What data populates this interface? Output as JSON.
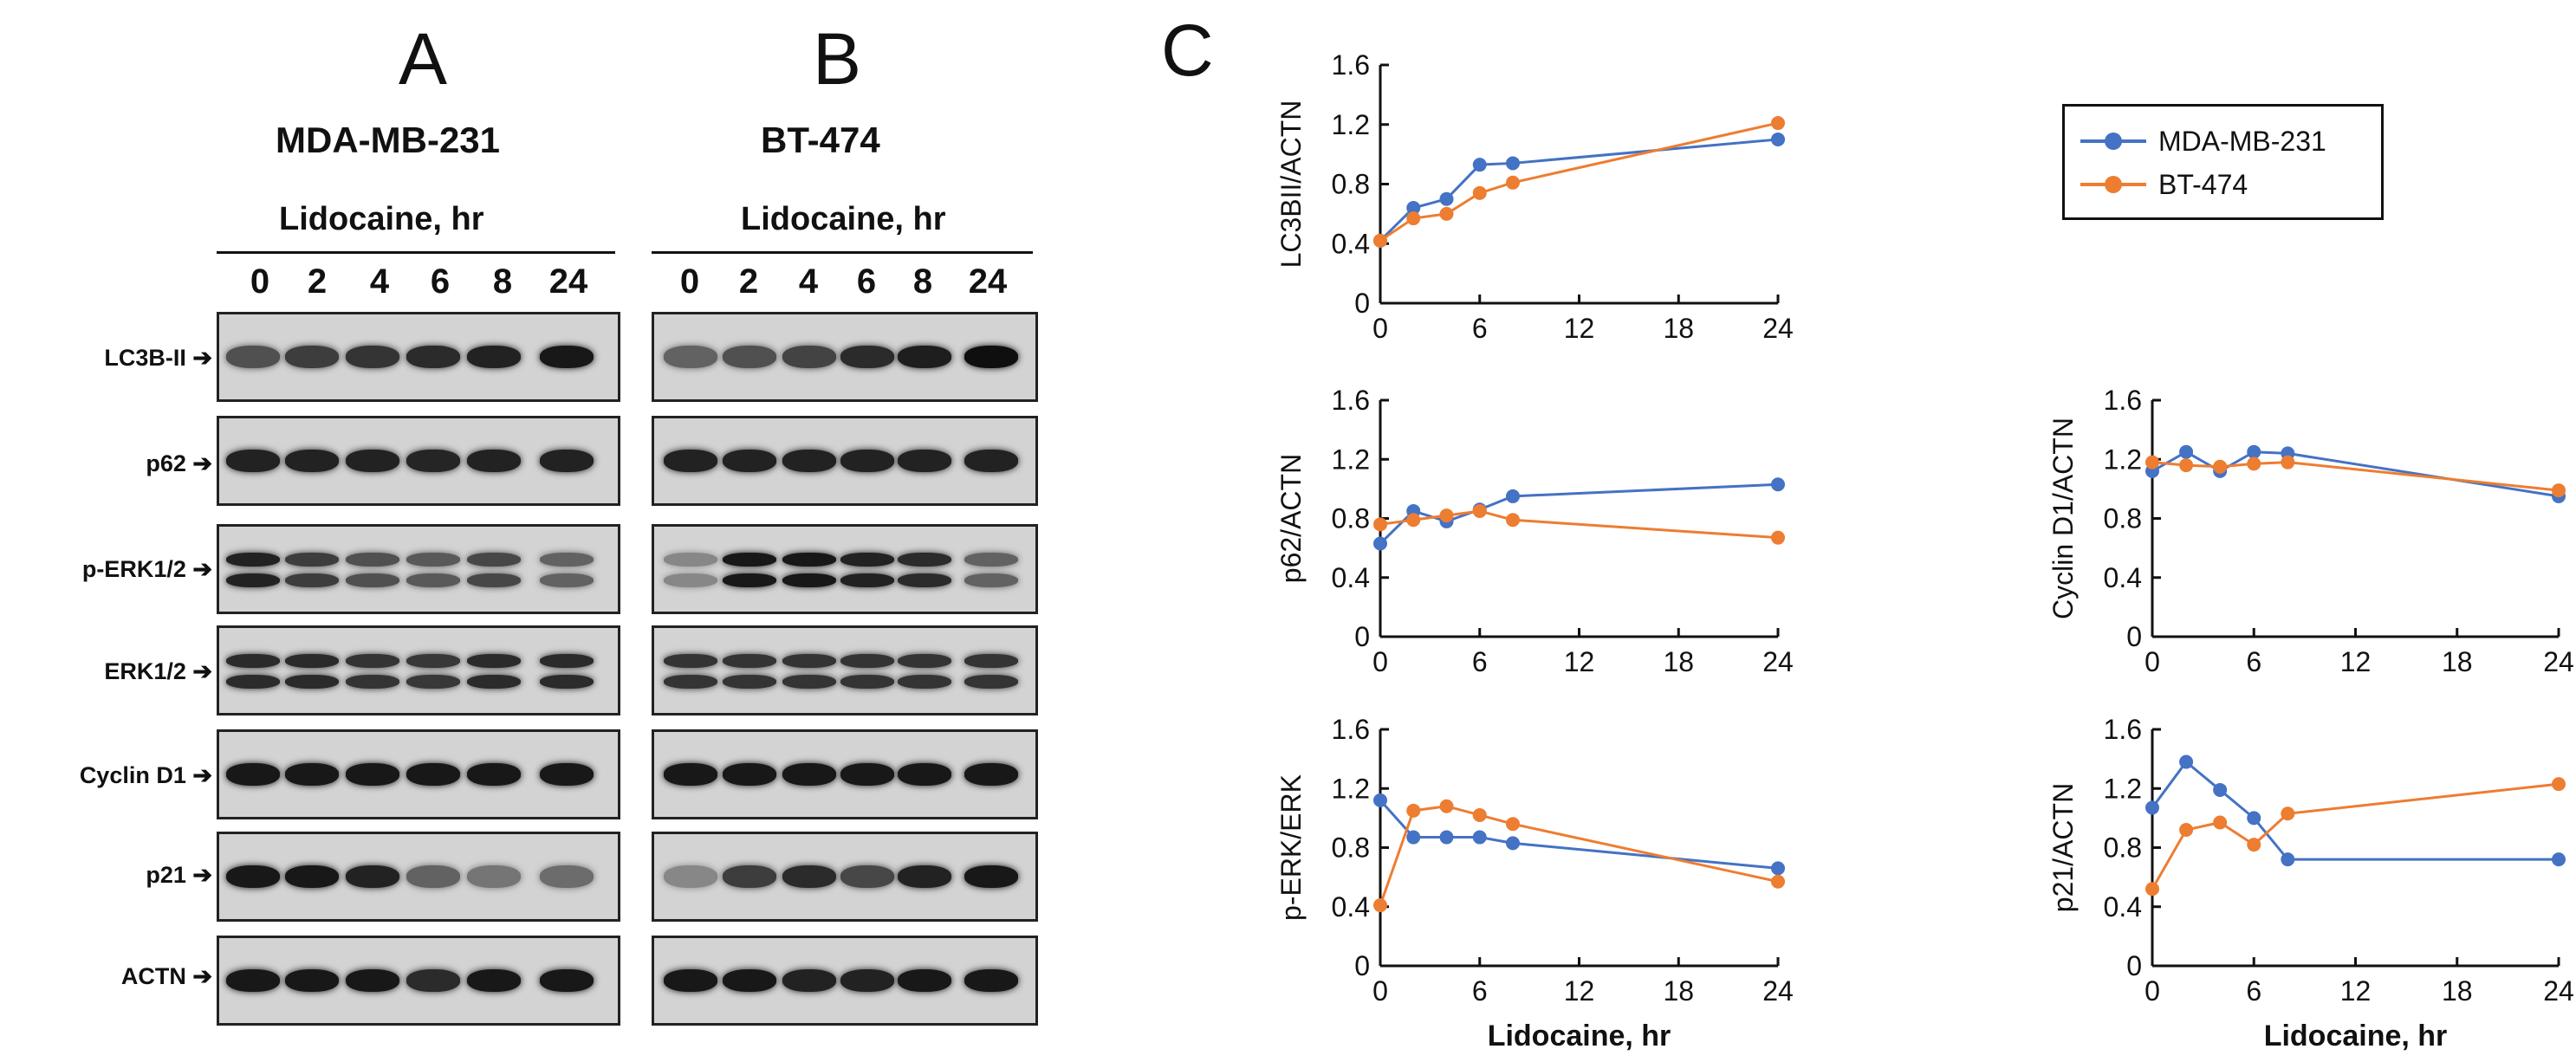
{
  "panel_letters": {
    "a": "A",
    "b": "B",
    "c": "C"
  },
  "cell_lines": [
    "MDA-MB-231",
    "BT-474"
  ],
  "blot_header": "Lidocaine, hr",
  "time_points": [
    "0",
    "2",
    "4",
    "6",
    "8",
    "24"
  ],
  "proteins": [
    "LC3B-II",
    "p62",
    "p-ERK1/2",
    "ERK1/2",
    "Cyclin D1",
    "p21",
    "ACTN"
  ],
  "arrow_symbol": "➔",
  "colors": {
    "mda": "#4472C4",
    "bt": "#ED7D31"
  },
  "legend": [
    "MDA-MB-231",
    "BT-474"
  ],
  "chart_data": [
    {
      "type": "line",
      "ylabel": "LC3BII/ACTN",
      "xlabel": "",
      "x": [
        0,
        2,
        4,
        6,
        8,
        24
      ],
      "xticks": [
        0,
        6,
        12,
        18,
        24
      ],
      "yticks": [
        0,
        0.4,
        0.8,
        1.2,
        1.6
      ],
      "xlim": [
        0,
        24
      ],
      "ylim": [
        0,
        1.6
      ],
      "series": [
        {
          "name": "MDA-MB-231",
          "values": [
            0.42,
            0.64,
            0.7,
            0.93,
            0.94,
            1.1
          ]
        },
        {
          "name": "BT-474",
          "values": [
            0.42,
            0.57,
            0.6,
            0.74,
            0.81,
            1.21
          ]
        }
      ]
    },
    {
      "type": "line",
      "ylabel": "p62/ACTN",
      "xlabel": "",
      "x": [
        0,
        2,
        4,
        6,
        8,
        24
      ],
      "xticks": [
        0,
        6,
        12,
        18,
        24
      ],
      "yticks": [
        0,
        0.4,
        0.8,
        1.2,
        1.6
      ],
      "xlim": [
        0,
        24
      ],
      "ylim": [
        0,
        1.6
      ],
      "series": [
        {
          "name": "MDA-MB-231",
          "values": [
            0.63,
            0.85,
            0.78,
            0.86,
            0.95,
            1.03
          ]
        },
        {
          "name": "BT-474",
          "values": [
            0.76,
            0.79,
            0.82,
            0.85,
            0.79,
            0.67
          ]
        }
      ]
    },
    {
      "type": "line",
      "ylabel": "Cyclin D1/ACTN",
      "xlabel": "",
      "x": [
        0,
        2,
        4,
        6,
        8,
        24
      ],
      "xticks": [
        0,
        6,
        12,
        18,
        24
      ],
      "yticks": [
        0,
        0.4,
        0.8,
        1.2,
        1.6
      ],
      "xlim": [
        0,
        24
      ],
      "ylim": [
        0,
        1.6
      ],
      "series": [
        {
          "name": "MDA-MB-231",
          "values": [
            1.12,
            1.25,
            1.12,
            1.25,
            1.24,
            0.95
          ]
        },
        {
          "name": "BT-474",
          "values": [
            1.18,
            1.16,
            1.15,
            1.17,
            1.18,
            0.99
          ]
        }
      ]
    },
    {
      "type": "line",
      "ylabel": "p-ERK/ERK",
      "xlabel": "Lidocaine, hr",
      "x": [
        0,
        2,
        4,
        6,
        8,
        24
      ],
      "xticks": [
        0,
        6,
        12,
        18,
        24
      ],
      "yticks": [
        0,
        0.4,
        0.8,
        1.2,
        1.6
      ],
      "xlim": [
        0,
        24
      ],
      "ylim": [
        0,
        1.6
      ],
      "series": [
        {
          "name": "MDA-MB-231",
          "values": [
            1.12,
            0.87,
            0.87,
            0.87,
            0.83,
            0.66
          ]
        },
        {
          "name": "BT-474",
          "values": [
            0.41,
            1.05,
            1.08,
            1.02,
            0.96,
            0.57
          ]
        }
      ]
    },
    {
      "type": "line",
      "ylabel": "p21/ACTN",
      "xlabel": "Lidocaine, hr",
      "x": [
        0,
        2,
        4,
        6,
        8,
        24
      ],
      "xticks": [
        0,
        6,
        12,
        18,
        24
      ],
      "yticks": [
        0,
        0.4,
        0.8,
        1.2,
        1.6
      ],
      "xlim": [
        0,
        24
      ],
      "ylim": [
        0,
        1.6
      ],
      "series": [
        {
          "name": "MDA-MB-231",
          "values": [
            1.07,
            1.38,
            1.19,
            1.0,
            0.72,
            0.72
          ]
        },
        {
          "name": "BT-474",
          "values": [
            0.52,
            0.92,
            0.97,
            0.82,
            1.03,
            1.23
          ]
        }
      ]
    }
  ]
}
